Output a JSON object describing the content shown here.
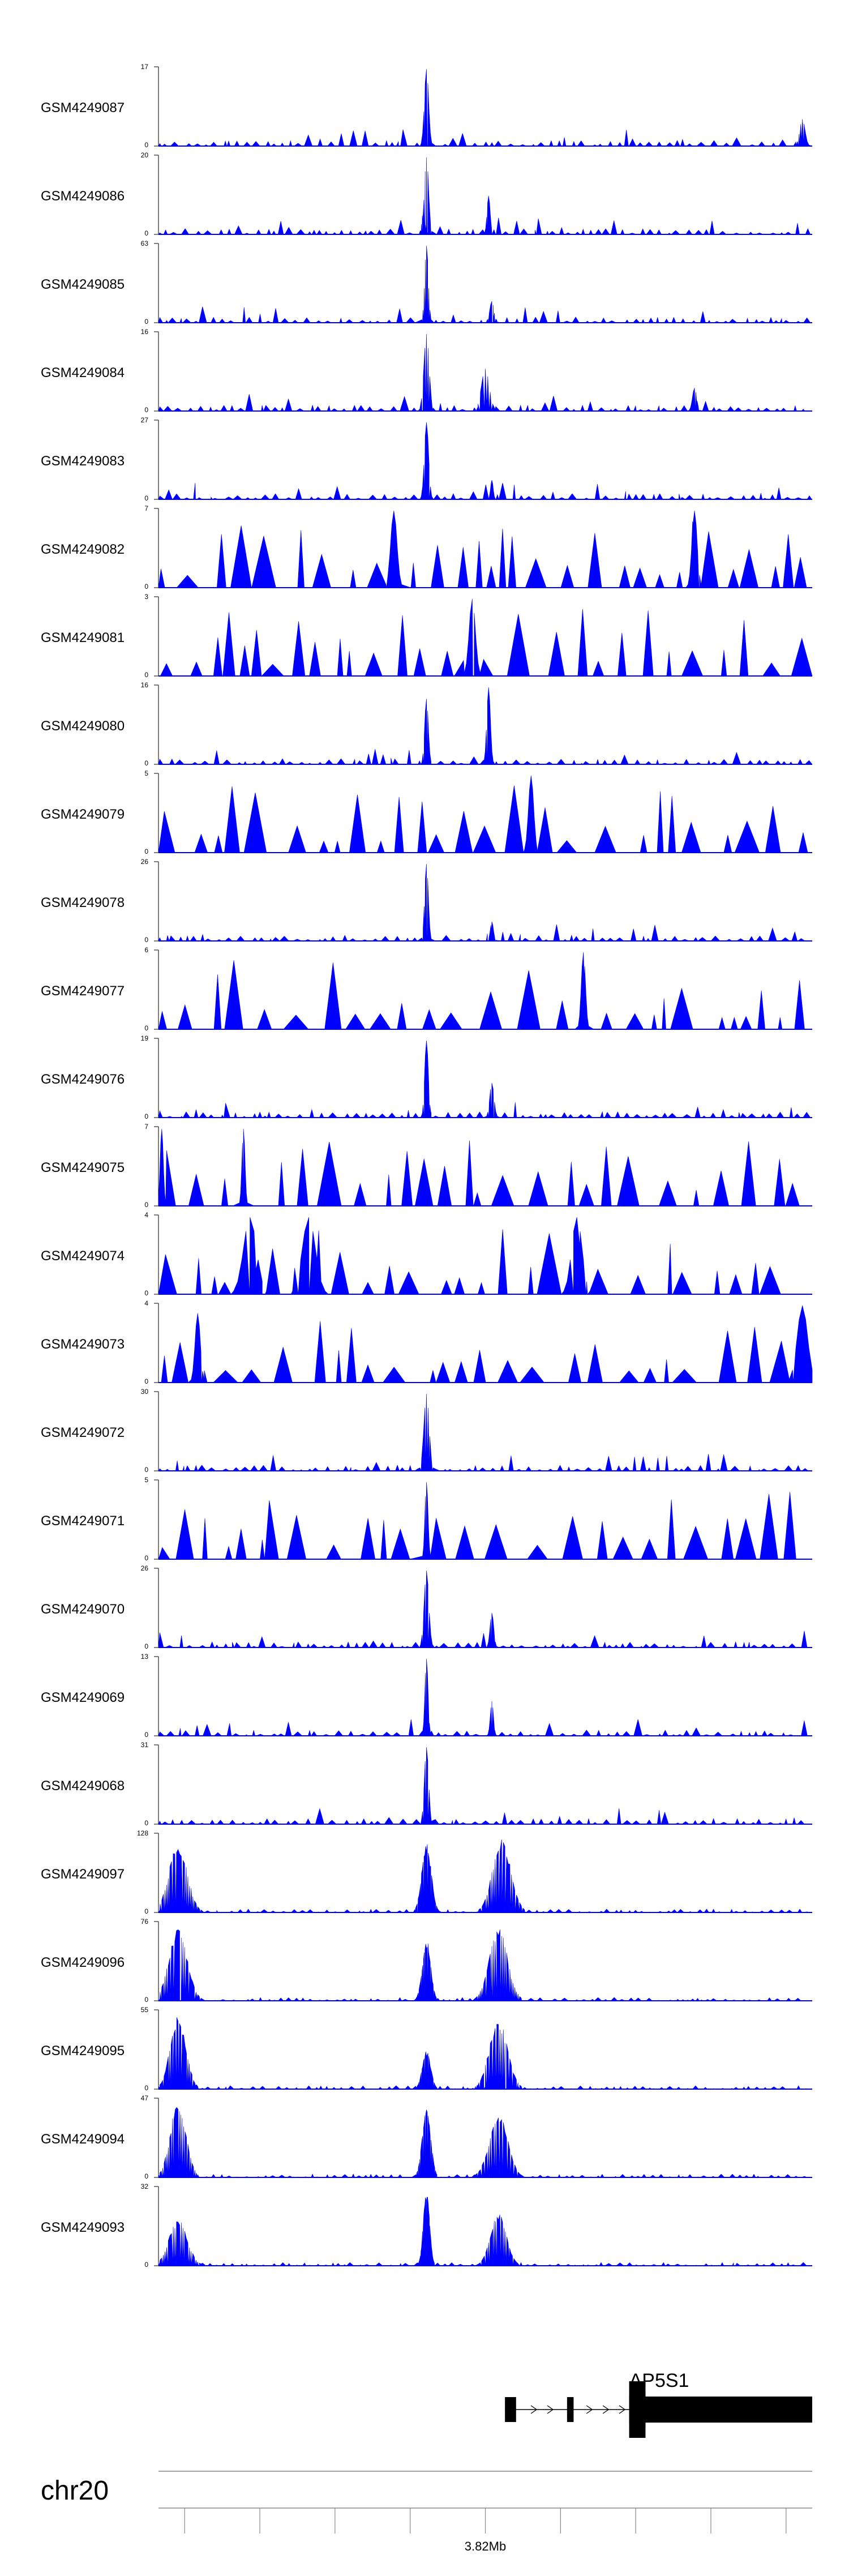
{
  "chart_data": {
    "type": "area",
    "fill_color": "#0000ff",
    "axis_color": "#000000",
    "tracks": [
      {
        "label": "GSM4249087",
        "ymax": "17",
        "ymin": "0",
        "style": "dense",
        "seed": 11,
        "peaks": [
          {
            "pos": 0.41,
            "h": 1.0,
            "w": 0.008
          },
          {
            "pos": 0.985,
            "h": 0.35,
            "w": 0.01
          }
        ]
      },
      {
        "label": "GSM4249086",
        "ymax": "20",
        "ymin": "0",
        "style": "dense",
        "seed": 12,
        "peaks": [
          {
            "pos": 0.41,
            "h": 1.0,
            "w": 0.008
          },
          {
            "pos": 0.405,
            "h": 0.3,
            "w": 0.006
          },
          {
            "pos": 0.505,
            "h": 0.5,
            "w": 0.006
          }
        ]
      },
      {
        "label": "GSM4249085",
        "ymax": "63",
        "ymin": "0",
        "style": "dense",
        "seed": 13,
        "peaks": [
          {
            "pos": 0.41,
            "h": 1.0,
            "w": 0.007
          },
          {
            "pos": 0.51,
            "h": 0.28,
            "w": 0.008
          }
        ]
      },
      {
        "label": "GSM4249084",
        "ymax": "16",
        "ymin": "0",
        "style": "dense",
        "seed": 14,
        "peaks": [
          {
            "pos": 0.41,
            "h": 1.0,
            "w": 0.01
          },
          {
            "pos": 0.5,
            "h": 0.55,
            "w": 0.015
          },
          {
            "pos": 0.82,
            "h": 0.3,
            "w": 0.008
          }
        ]
      },
      {
        "label": "GSM4249083",
        "ymax": "27",
        "ymin": "0",
        "style": "dense",
        "seed": 15,
        "peaks": [
          {
            "pos": 0.41,
            "h": 1.0,
            "w": 0.008
          },
          {
            "pos": 0.51,
            "h": 0.25,
            "w": 0.005
          }
        ]
      },
      {
        "label": "GSM4249082",
        "ymax": "7",
        "ymin": "0",
        "style": "sparse",
        "seed": 16,
        "peaks": [
          {
            "pos": 0.36,
            "h": 1.0,
            "w": 0.012
          },
          {
            "pos": 0.82,
            "h": 1.0,
            "w": 0.01
          }
        ]
      },
      {
        "label": "GSM4249081",
        "ymax": "3",
        "ymin": "0",
        "style": "sparse",
        "seed": 17,
        "peaks": [
          {
            "pos": 0.48,
            "h": 1.0,
            "w": 0.012
          }
        ]
      },
      {
        "label": "GSM4249080",
        "ymax": "16",
        "ymin": "0",
        "style": "dense",
        "seed": 18,
        "peaks": [
          {
            "pos": 0.41,
            "h": 0.85,
            "w": 0.007
          },
          {
            "pos": 0.505,
            "h": 1.0,
            "w": 0.007
          }
        ]
      },
      {
        "label": "GSM4249079",
        "ymax": "5",
        "ymin": "0",
        "style": "sparse",
        "seed": 19,
        "peaks": [
          {
            "pos": 0.57,
            "h": 1.0,
            "w": 0.01
          }
        ]
      },
      {
        "label": "GSM4249078",
        "ymax": "26",
        "ymin": "0",
        "style": "dense",
        "seed": 20,
        "peaks": [
          {
            "pos": 0.41,
            "h": 1.0,
            "w": 0.007
          },
          {
            "pos": 0.51,
            "h": 0.25,
            "w": 0.006
          }
        ]
      },
      {
        "label": "GSM4249077",
        "ymax": "6",
        "ymin": "0",
        "style": "sparse",
        "seed": 21,
        "peaks": [
          {
            "pos": 0.65,
            "h": 1.0,
            "w": 0.008
          }
        ]
      },
      {
        "label": "GSM4249076",
        "ymax": "19",
        "ymin": "0",
        "style": "dense",
        "seed": 22,
        "peaks": [
          {
            "pos": 0.41,
            "h": 1.0,
            "w": 0.007
          },
          {
            "pos": 0.51,
            "h": 0.45,
            "w": 0.008
          }
        ]
      },
      {
        "label": "GSM4249075",
        "ymax": "7",
        "ymin": "0",
        "style": "sparse",
        "seed": 23,
        "peaks": [
          {
            "pos": 0.005,
            "h": 1.0,
            "w": 0.006
          },
          {
            "pos": 0.13,
            "h": 1.0,
            "w": 0.006
          }
        ]
      },
      {
        "label": "GSM4249074",
        "ymax": "4",
        "ymin": "0",
        "style": "sparse",
        "seed": 24,
        "peaks": [
          {
            "pos": 0.14,
            "h": 1.0,
            "w": 0.025
          },
          {
            "pos": 0.23,
            "h": 1.0,
            "w": 0.025
          },
          {
            "pos": 0.64,
            "h": 1.0,
            "w": 0.02
          }
        ]
      },
      {
        "label": "GSM4249073",
        "ymax": "4",
        "ymin": "0",
        "style": "sparse",
        "seed": 25,
        "peaks": [
          {
            "pos": 0.06,
            "h": 0.9,
            "w": 0.01
          },
          {
            "pos": 0.985,
            "h": 1.0,
            "w": 0.02
          }
        ]
      },
      {
        "label": "GSM4249072",
        "ymax": "30",
        "ymin": "0",
        "style": "dense",
        "seed": 26,
        "peaks": [
          {
            "pos": 0.41,
            "h": 1.0,
            "w": 0.01
          }
        ]
      },
      {
        "label": "GSM4249071",
        "ymax": "5",
        "ymin": "0",
        "style": "sparse",
        "seed": 27,
        "peaks": [
          {
            "pos": 0.41,
            "h": 1.0,
            "w": 0.006
          }
        ]
      },
      {
        "label": "GSM4249070",
        "ymax": "26",
        "ymin": "0",
        "style": "dense",
        "seed": 28,
        "peaks": [
          {
            "pos": 0.41,
            "h": 1.0,
            "w": 0.009
          },
          {
            "pos": 0.51,
            "h": 0.45,
            "w": 0.007
          }
        ]
      },
      {
        "label": "GSM4249069",
        "ymax": "13",
        "ymin": "0",
        "style": "dense",
        "seed": 29,
        "peaks": [
          {
            "pos": 0.41,
            "h": 1.0,
            "w": 0.006
          },
          {
            "pos": 0.51,
            "h": 0.45,
            "w": 0.006
          }
        ]
      },
      {
        "label": "GSM4249068",
        "ymax": "31",
        "ymin": "0",
        "style": "dense",
        "seed": 30,
        "peaks": [
          {
            "pos": 0.41,
            "h": 1.0,
            "w": 0.008
          }
        ]
      },
      {
        "label": "GSM4249097",
        "ymax": "128",
        "ymin": "0",
        "style": "broad",
        "seed": 31,
        "peaks": [
          {
            "pos": 0.03,
            "h": 0.9,
            "w": 0.035
          },
          {
            "pos": 0.41,
            "h": 0.92,
            "w": 0.018
          },
          {
            "pos": 0.525,
            "h": 0.95,
            "w": 0.035
          }
        ]
      },
      {
        "label": "GSM4249096",
        "ymax": "76",
        "ymin": "0",
        "style": "broad",
        "seed": 32,
        "peaks": [
          {
            "pos": 0.03,
            "h": 0.95,
            "w": 0.035
          },
          {
            "pos": 0.41,
            "h": 0.8,
            "w": 0.016
          },
          {
            "pos": 0.52,
            "h": 0.95,
            "w": 0.035
          }
        ]
      },
      {
        "label": "GSM4249095",
        "ymax": "55",
        "ymin": "0",
        "style": "broad",
        "seed": 33,
        "peaks": [
          {
            "pos": 0.03,
            "h": 0.95,
            "w": 0.03
          },
          {
            "pos": 0.41,
            "h": 0.5,
            "w": 0.016
          },
          {
            "pos": 0.52,
            "h": 0.9,
            "w": 0.035
          }
        ]
      },
      {
        "label": "GSM4249094",
        "ymax": "47",
        "ymin": "0",
        "style": "broad",
        "seed": 34,
        "peaks": [
          {
            "pos": 0.03,
            "h": 1.0,
            "w": 0.03
          },
          {
            "pos": 0.41,
            "h": 0.95,
            "w": 0.016
          },
          {
            "pos": 0.52,
            "h": 0.85,
            "w": 0.035
          }
        ]
      },
      {
        "label": "GSM4249093",
        "ymax": "32",
        "ymin": "0",
        "style": "broad",
        "seed": 35,
        "peaks": [
          {
            "pos": 0.03,
            "h": 0.6,
            "w": 0.035
          },
          {
            "pos": 0.41,
            "h": 1.0,
            "w": 0.012
          },
          {
            "pos": 0.52,
            "h": 0.7,
            "w": 0.03
          }
        ]
      }
    ],
    "gene": {
      "name": "AP5S1",
      "exons": [
        [
          0.53,
          0.547
        ],
        [
          0.625,
          0.635
        ],
        [
          0.72,
          0.745
        ],
        [
          0.745,
          1.0
        ]
      ],
      "thick_start": 0.72,
      "chevrons": [
        0.575,
        0.6,
        0.66,
        0.685,
        0.71
      ]
    },
    "axis": {
      "chromosome": "chr20",
      "tick_label": "3.82Mb",
      "tick_label_pos": 0.5,
      "ticks": [
        0.04,
        0.155,
        0.27,
        0.385,
        0.5,
        0.615,
        0.73,
        0.845,
        0.96
      ]
    }
  }
}
